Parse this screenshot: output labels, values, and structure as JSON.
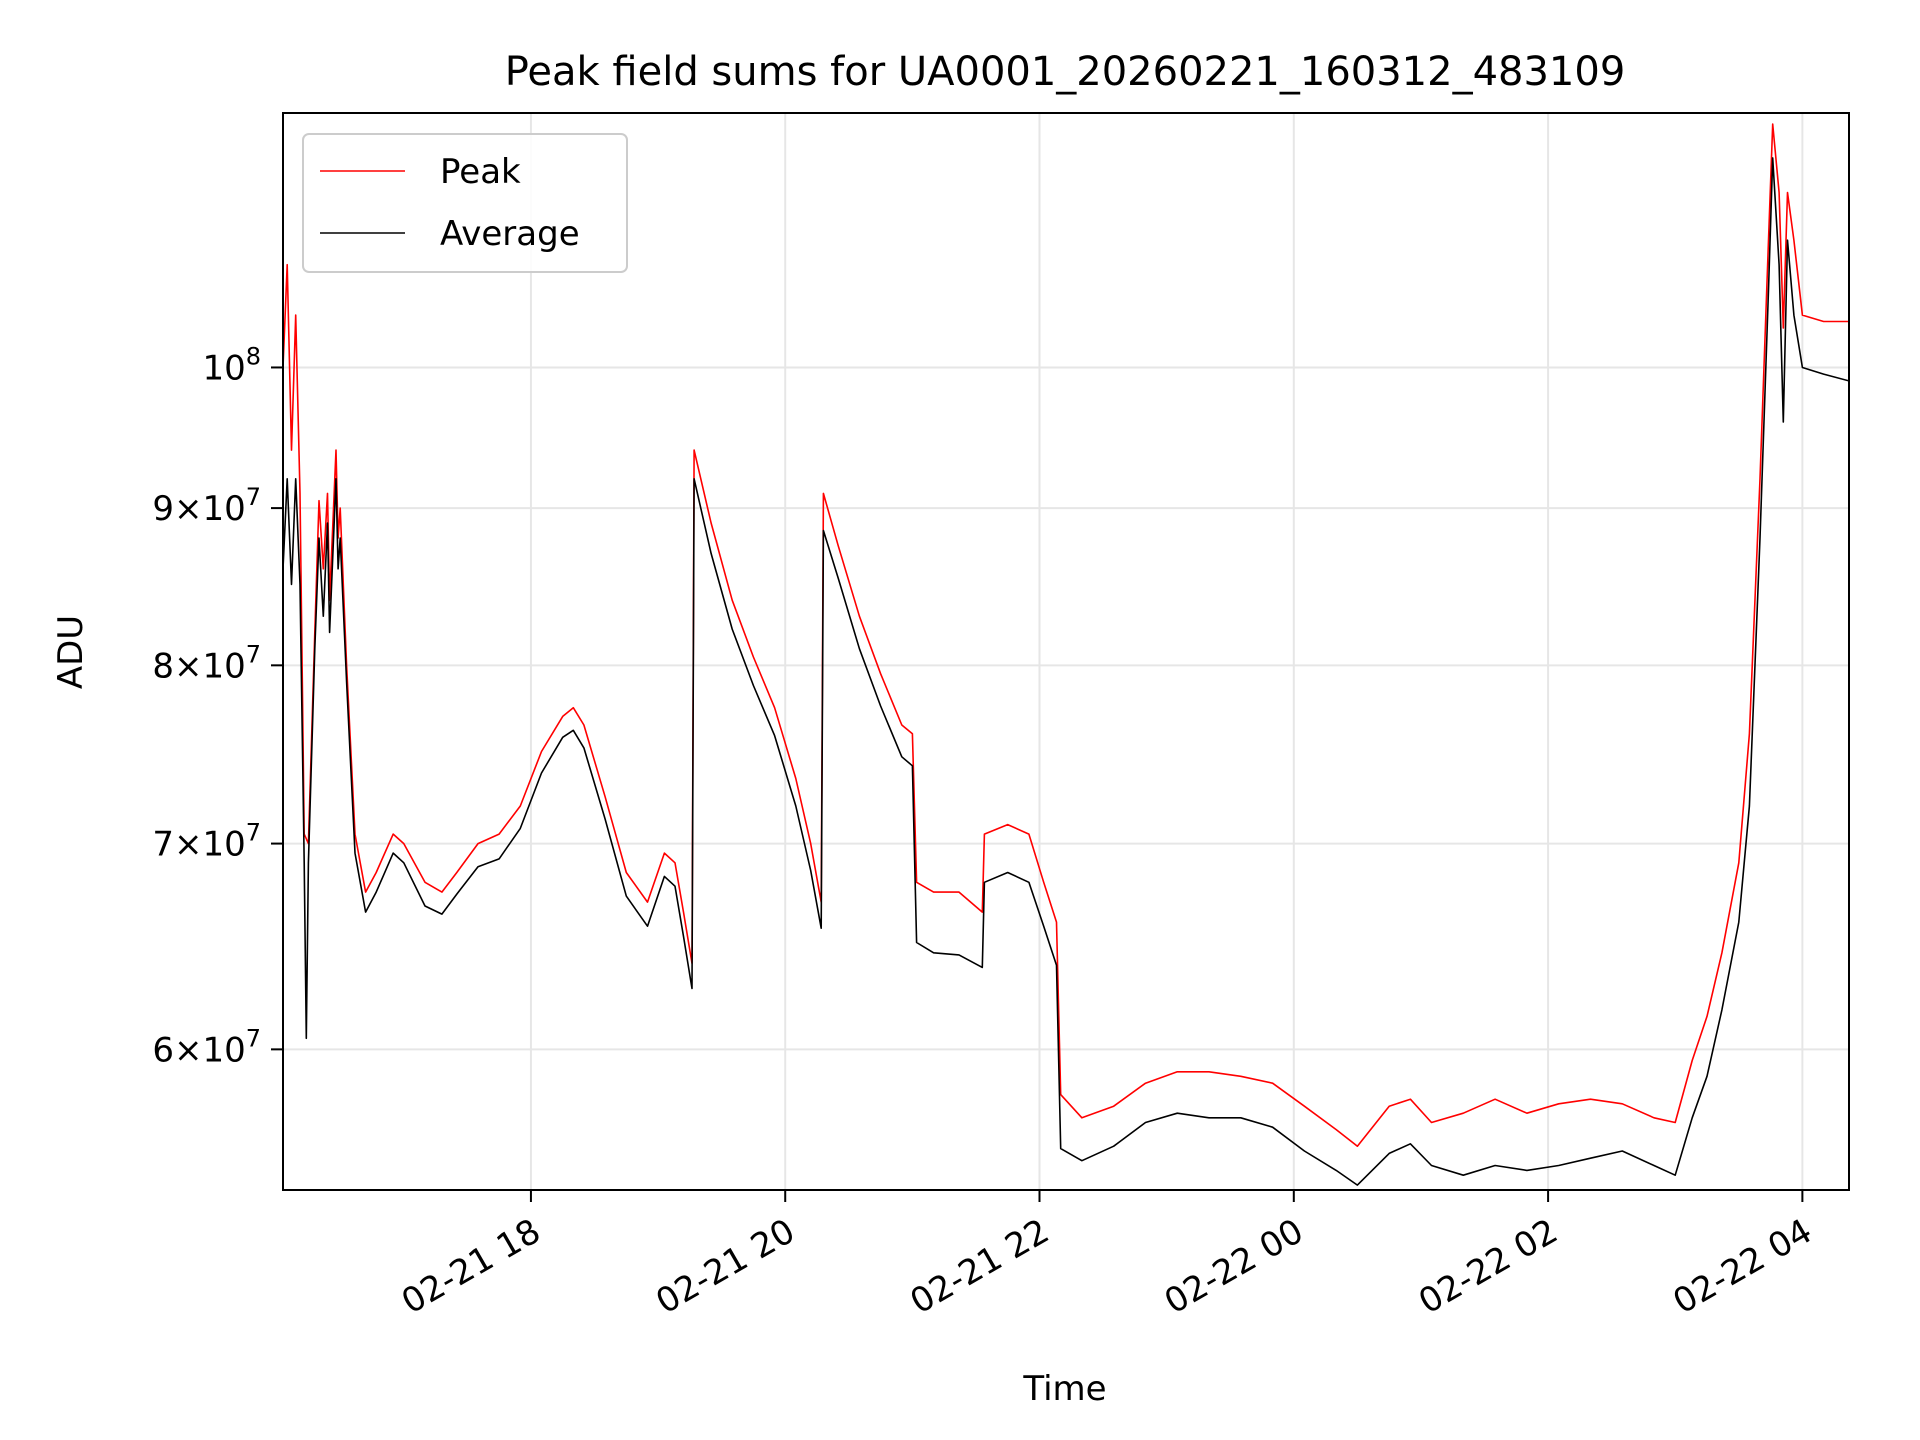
{
  "chart_data": {
    "type": "line",
    "title": "Peak field sums for UA0001_20260221_160312_483109",
    "xlabel": "Time",
    "ylabel": "ADU",
    "yscale": "log",
    "grid": true,
    "legend_placement": "top-left",
    "xlim": [
      "2026-02-21 16:03",
      "2026-02-22 04:22"
    ],
    "ylim": [
      54000000,
      121000000
    ],
    "x_ticks": [
      {
        "value": "2026-02-21 18:00",
        "label": "02-21 18"
      },
      {
        "value": "2026-02-21 20:00",
        "label": "02-21 20"
      },
      {
        "value": "2026-02-21 22:00",
        "label": "02-21 22"
      },
      {
        "value": "2026-02-22 00:00",
        "label": "02-22 00"
      },
      {
        "value": "2026-02-22 02:00",
        "label": "02-22 02"
      },
      {
        "value": "2026-02-22 04:00",
        "label": "02-22 04"
      }
    ],
    "y_ticks": [
      {
        "value": 60000000,
        "mant": "6",
        "base": "10",
        "exp": "7"
      },
      {
        "value": 70000000,
        "mant": "7",
        "base": "10",
        "exp": "7"
      },
      {
        "value": 80000000,
        "mant": "8",
        "base": "10",
        "exp": "7"
      },
      {
        "value": 90000000,
        "mant": "9",
        "base": "10",
        "exp": "7"
      },
      {
        "value": 100000000,
        "mant": "",
        "base": "10",
        "exp": "8"
      }
    ],
    "series": [
      {
        "name": "Peak",
        "color": "#ff0000",
        "points": [
          [
            "2026-02-21 16:03",
            100000000
          ],
          [
            "2026-02-21 16:05",
            108000000
          ],
          [
            "2026-02-21 16:07",
            94000000
          ],
          [
            "2026-02-21 16:09",
            104000000
          ],
          [
            "2026-02-21 16:11",
            91000000
          ],
          [
            "2026-02-21 16:13",
            70500000
          ],
          [
            "2026-02-21 16:15",
            70000000
          ],
          [
            "2026-02-21 16:18",
            82000000
          ],
          [
            "2026-02-21 16:20",
            90500000
          ],
          [
            "2026-02-21 16:22",
            86000000
          ],
          [
            "2026-02-21 16:24",
            91000000
          ],
          [
            "2026-02-21 16:25",
            84000000
          ],
          [
            "2026-02-21 16:28",
            94000000
          ],
          [
            "2026-02-21 16:29",
            88000000
          ],
          [
            "2026-02-21 16:30",
            90000000
          ],
          [
            "2026-02-21 16:33",
            80000000
          ],
          [
            "2026-02-21 16:37",
            70500000
          ],
          [
            "2026-02-21 16:42",
            67500000
          ],
          [
            "2026-02-21 16:47",
            68500000
          ],
          [
            "2026-02-21 16:55",
            70500000
          ],
          [
            "2026-02-21 17:00",
            70000000
          ],
          [
            "2026-02-21 17:10",
            68000000
          ],
          [
            "2026-02-21 17:18",
            67500000
          ],
          [
            "2026-02-21 17:25",
            68500000
          ],
          [
            "2026-02-21 17:35",
            70000000
          ],
          [
            "2026-02-21 17:45",
            70500000
          ],
          [
            "2026-02-21 17:55",
            72000000
          ],
          [
            "2026-02-21 18:05",
            75000000
          ],
          [
            "2026-02-21 18:15",
            77000000
          ],
          [
            "2026-02-21 18:20",
            77500000
          ],
          [
            "2026-02-21 18:25",
            76500000
          ],
          [
            "2026-02-21 18:35",
            72500000
          ],
          [
            "2026-02-21 18:45",
            68500000
          ],
          [
            "2026-02-21 18:55",
            67000000
          ],
          [
            "2026-02-21 19:03",
            69500000
          ],
          [
            "2026-02-21 19:08",
            69000000
          ],
          [
            "2026-02-21 19:12",
            66500000
          ],
          [
            "2026-02-21 19:16",
            64000000
          ],
          [
            "2026-02-21 19:17",
            94000000
          ],
          [
            "2026-02-21 19:25",
            89000000
          ],
          [
            "2026-02-21 19:35",
            84000000
          ],
          [
            "2026-02-21 19:45",
            80500000
          ],
          [
            "2026-02-21 19:55",
            77500000
          ],
          [
            "2026-02-21 20:05",
            73500000
          ],
          [
            "2026-02-21 20:12",
            70000000
          ],
          [
            "2026-02-21 20:17",
            67000000
          ],
          [
            "2026-02-21 20:18",
            91000000
          ],
          [
            "2026-02-21 20:25",
            87500000
          ],
          [
            "2026-02-21 20:35",
            83000000
          ],
          [
            "2026-02-21 20:45",
            79500000
          ],
          [
            "2026-02-21 20:55",
            76500000
          ],
          [
            "2026-02-21 21:00",
            76000000
          ],
          [
            "2026-02-21 21:02",
            68000000
          ],
          [
            "2026-02-21 21:10",
            67500000
          ],
          [
            "2026-02-21 21:22",
            67500000
          ],
          [
            "2026-02-21 21:33",
            66500000
          ],
          [
            "2026-02-21 21:34",
            70500000
          ],
          [
            "2026-02-21 21:45",
            71000000
          ],
          [
            "2026-02-21 21:55",
            70500000
          ],
          [
            "2026-02-21 22:02",
            68000000
          ],
          [
            "2026-02-21 22:08",
            66000000
          ],
          [
            "2026-02-21 22:10",
            58000000
          ],
          [
            "2026-02-21 22:20",
            57000000
          ],
          [
            "2026-02-21 22:35",
            57500000
          ],
          [
            "2026-02-21 22:50",
            58500000
          ],
          [
            "2026-02-21 23:05",
            59000000
          ],
          [
            "2026-02-21 23:20",
            59000000
          ],
          [
            "2026-02-21 23:35",
            58800000
          ],
          [
            "2026-02-21 23:50",
            58500000
          ],
          [
            "2026-02-22 00:05",
            57500000
          ],
          [
            "2026-02-22 00:20",
            56500000
          ],
          [
            "2026-02-22 00:30",
            55800000
          ],
          [
            "2026-02-22 00:45",
            57500000
          ],
          [
            "2026-02-22 00:55",
            57800000
          ],
          [
            "2026-02-22 01:05",
            56800000
          ],
          [
            "2026-02-22 01:20",
            57200000
          ],
          [
            "2026-02-22 01:35",
            57800000
          ],
          [
            "2026-02-22 01:50",
            57200000
          ],
          [
            "2026-02-22 02:05",
            57600000
          ],
          [
            "2026-02-22 02:20",
            57800000
          ],
          [
            "2026-02-22 02:35",
            57600000
          ],
          [
            "2026-02-22 02:50",
            57000000
          ],
          [
            "2026-02-22 03:00",
            56800000
          ],
          [
            "2026-02-22 03:08",
            59500000
          ],
          [
            "2026-02-22 03:15",
            61500000
          ],
          [
            "2026-02-22 03:22",
            64500000
          ],
          [
            "2026-02-22 03:30",
            69000000
          ],
          [
            "2026-02-22 03:35",
            76000000
          ],
          [
            "2026-02-22 03:40",
            92000000
          ],
          [
            "2026-02-22 03:44",
            110000000
          ],
          [
            "2026-02-22 03:46",
            120000000
          ],
          [
            "2026-02-22 03:49",
            114000000
          ],
          [
            "2026-02-22 03:51",
            103000000
          ],
          [
            "2026-02-22 03:53",
            114000000
          ],
          [
            "2026-02-22 03:56",
            110000000
          ],
          [
            "2026-02-22 04:00",
            104000000
          ],
          [
            "2026-02-22 04:10",
            103500000
          ],
          [
            "2026-02-22 04:22",
            103500000
          ]
        ]
      },
      {
        "name": "Average",
        "color": "#000000",
        "points": [
          [
            "2026-02-21 16:03",
            86000000
          ],
          [
            "2026-02-21 16:05",
            92000000
          ],
          [
            "2026-02-21 16:07",
            85000000
          ],
          [
            "2026-02-21 16:09",
            92000000
          ],
          [
            "2026-02-21 16:11",
            85000000
          ],
          [
            "2026-02-21 16:13",
            69000000
          ],
          [
            "2026-02-21 16:14",
            60500000
          ],
          [
            "2026-02-21 16:15",
            69000000
          ],
          [
            "2026-02-21 16:18",
            81000000
          ],
          [
            "2026-02-21 16:20",
            88000000
          ],
          [
            "2026-02-21 16:22",
            83000000
          ],
          [
            "2026-02-21 16:24",
            89000000
          ],
          [
            "2026-02-21 16:25",
            82000000
          ],
          [
            "2026-02-21 16:28",
            92000000
          ],
          [
            "2026-02-21 16:29",
            86000000
          ],
          [
            "2026-02-21 16:30",
            88000000
          ],
          [
            "2026-02-21 16:33",
            79000000
          ],
          [
            "2026-02-21 16:37",
            69500000
          ],
          [
            "2026-02-21 16:42",
            66500000
          ],
          [
            "2026-02-21 16:47",
            67500000
          ],
          [
            "2026-02-21 16:55",
            69500000
          ],
          [
            "2026-02-21 17:00",
            69000000
          ],
          [
            "2026-02-21 17:10",
            66800000
          ],
          [
            "2026-02-21 17:18",
            66400000
          ],
          [
            "2026-02-21 17:25",
            67400000
          ],
          [
            "2026-02-21 17:35",
            68800000
          ],
          [
            "2026-02-21 17:45",
            69200000
          ],
          [
            "2026-02-21 17:55",
            70800000
          ],
          [
            "2026-02-21 18:05",
            73800000
          ],
          [
            "2026-02-21 18:15",
            75800000
          ],
          [
            "2026-02-21 18:20",
            76200000
          ],
          [
            "2026-02-21 18:25",
            75200000
          ],
          [
            "2026-02-21 18:35",
            71300000
          ],
          [
            "2026-02-21 18:45",
            67300000
          ],
          [
            "2026-02-21 18:55",
            65800000
          ],
          [
            "2026-02-21 19:03",
            68300000
          ],
          [
            "2026-02-21 19:08",
            67800000
          ],
          [
            "2026-02-21 19:12",
            65300000
          ],
          [
            "2026-02-21 19:16",
            62800000
          ],
          [
            "2026-02-21 19:17",
            92000000
          ],
          [
            "2026-02-21 19:25",
            87000000
          ],
          [
            "2026-02-21 19:35",
            82200000
          ],
          [
            "2026-02-21 19:45",
            78800000
          ],
          [
            "2026-02-21 19:55",
            75900000
          ],
          [
            "2026-02-21 20:05",
            72000000
          ],
          [
            "2026-02-21 20:12",
            68600000
          ],
          [
            "2026-02-21 20:17",
            65700000
          ],
          [
            "2026-02-21 20:18",
            88500000
          ],
          [
            "2026-02-21 20:25",
            85400000
          ],
          [
            "2026-02-21 20:35",
            81000000
          ],
          [
            "2026-02-21 20:45",
            77600000
          ],
          [
            "2026-02-21 20:55",
            74700000
          ],
          [
            "2026-02-21 21:00",
            74200000
          ],
          [
            "2026-02-21 21:02",
            65000000
          ],
          [
            "2026-02-21 21:10",
            64500000
          ],
          [
            "2026-02-21 21:22",
            64400000
          ],
          [
            "2026-02-21 21:33",
            63800000
          ],
          [
            "2026-02-21 21:34",
            68000000
          ],
          [
            "2026-02-21 21:45",
            68500000
          ],
          [
            "2026-02-21 21:55",
            68000000
          ],
          [
            "2026-02-21 22:02",
            65800000
          ],
          [
            "2026-02-21 22:08",
            63900000
          ],
          [
            "2026-02-21 22:10",
            55700000
          ],
          [
            "2026-02-21 22:20",
            55200000
          ],
          [
            "2026-02-21 22:35",
            55800000
          ],
          [
            "2026-02-21 22:50",
            56800000
          ],
          [
            "2026-02-21 23:05",
            57200000
          ],
          [
            "2026-02-21 23:20",
            57000000
          ],
          [
            "2026-02-21 23:35",
            57000000
          ],
          [
            "2026-02-21 23:50",
            56600000
          ],
          [
            "2026-02-22 00:05",
            55600000
          ],
          [
            "2026-02-22 00:20",
            54800000
          ],
          [
            "2026-02-22 00:30",
            54200000
          ],
          [
            "2026-02-22 00:45",
            55500000
          ],
          [
            "2026-02-22 00:55",
            55900000
          ],
          [
            "2026-02-22 01:05",
            55000000
          ],
          [
            "2026-02-22 01:20",
            54600000
          ],
          [
            "2026-02-22 01:35",
            55000000
          ],
          [
            "2026-02-22 01:50",
            54800000
          ],
          [
            "2026-02-22 02:05",
            55000000
          ],
          [
            "2026-02-22 02:20",
            55300000
          ],
          [
            "2026-02-22 02:35",
            55600000
          ],
          [
            "2026-02-22 02:50",
            55000000
          ],
          [
            "2026-02-22 03:00",
            54600000
          ],
          [
            "2026-02-22 03:08",
            57000000
          ],
          [
            "2026-02-22 03:15",
            58800000
          ],
          [
            "2026-02-22 03:22",
            61800000
          ],
          [
            "2026-02-22 03:30",
            66000000
          ],
          [
            "2026-02-22 03:35",
            72000000
          ],
          [
            "2026-02-22 03:40",
            88000000
          ],
          [
            "2026-02-22 03:44",
            106000000
          ],
          [
            "2026-02-22 03:46",
            117000000
          ],
          [
            "2026-02-22 03:49",
            108000000
          ],
          [
            "2026-02-22 03:51",
            96000000
          ],
          [
            "2026-02-22 03:53",
            110000000
          ],
          [
            "2026-02-22 03:56",
            104000000
          ],
          [
            "2026-02-22 04:00",
            100000000
          ],
          [
            "2026-02-22 04:10",
            99500000
          ],
          [
            "2026-02-22 04:22",
            99000000
          ]
        ]
      }
    ]
  }
}
